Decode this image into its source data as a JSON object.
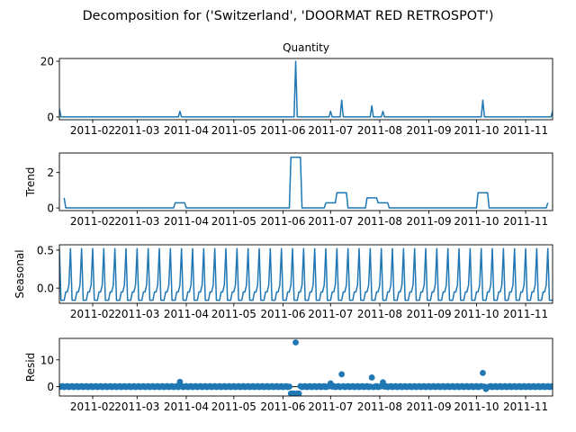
{
  "chart_data": {
    "type": "line",
    "figure_title": "Decomposition for ('Switzerland', 'DOORMAT RED RETROSPOT')",
    "x_domain": [
      "2011-01-11",
      "2011-11-18"
    ],
    "x_ticks": [
      "2011-02",
      "2011-03",
      "2011-04",
      "2011-05",
      "2011-06",
      "2011-07",
      "2011-08",
      "2011-09",
      "2011-10",
      "2011-11"
    ],
    "x_tick_dates": [
      "2011-02-01",
      "2011-03-01",
      "2011-04-01",
      "2011-05-01",
      "2011-06-01",
      "2011-07-01",
      "2011-08-01",
      "2011-09-01",
      "2011-10-01",
      "2011-11-01"
    ],
    "panels": [
      {
        "id": "quantity",
        "title": "Quantity",
        "ylabel": "",
        "ylim": [
          -1,
          21
        ],
        "yticks": [
          0,
          20
        ],
        "style": "line",
        "points": [
          [
            "2011-01-11",
            3
          ],
          [
            "2011-01-12",
            0
          ],
          [
            "2011-03-27",
            0
          ],
          [
            "2011-03-28",
            2
          ],
          [
            "2011-03-29",
            0
          ],
          [
            "2011-06-08",
            0
          ],
          [
            "2011-06-09",
            20
          ],
          [
            "2011-06-10",
            0
          ],
          [
            "2011-06-30",
            0
          ],
          [
            "2011-07-01",
            2
          ],
          [
            "2011-07-02",
            0
          ],
          [
            "2011-07-07",
            0
          ],
          [
            "2011-07-08",
            6
          ],
          [
            "2011-07-09",
            0
          ],
          [
            "2011-07-26",
            0
          ],
          [
            "2011-07-27",
            4
          ],
          [
            "2011-07-28",
            0
          ],
          [
            "2011-08-02",
            0
          ],
          [
            "2011-08-03",
            2
          ],
          [
            "2011-08-04",
            0
          ],
          [
            "2011-10-04",
            0
          ],
          [
            "2011-10-05",
            6
          ],
          [
            "2011-10-06",
            0
          ],
          [
            "2011-11-17",
            0
          ],
          [
            "2011-11-18",
            2
          ]
        ]
      },
      {
        "id": "trend",
        "title": "",
        "ylabel": "Trend",
        "ylim": [
          -0.15,
          3.1
        ],
        "yticks": [
          0,
          2
        ],
        "style": "line",
        "points": [
          [
            "2011-01-14",
            0.57
          ],
          [
            "2011-01-15",
            0
          ],
          [
            "2011-03-24",
            0
          ],
          [
            "2011-03-25",
            0.29
          ],
          [
            "2011-03-31",
            0.29
          ],
          [
            "2011-04-01",
            0
          ],
          [
            "2011-06-05",
            0
          ],
          [
            "2011-06-06",
            2.86
          ],
          [
            "2011-06-12",
            2.86
          ],
          [
            "2011-06-13",
            0
          ],
          [
            "2011-06-27",
            0
          ],
          [
            "2011-06-28",
            0.29
          ],
          [
            "2011-07-04",
            0.29
          ],
          [
            "2011-07-05",
            0.86
          ],
          [
            "2011-07-11",
            0.86
          ],
          [
            "2011-07-12",
            0
          ],
          [
            "2011-07-23",
            0
          ],
          [
            "2011-07-24",
            0.57
          ],
          [
            "2011-07-30",
            0.57
          ],
          [
            "2011-07-31",
            0.29
          ],
          [
            "2011-08-06",
            0.29
          ],
          [
            "2011-08-07",
            0
          ],
          [
            "2011-10-01",
            0
          ],
          [
            "2011-10-02",
            0.86
          ],
          [
            "2011-10-08",
            0.86
          ],
          [
            "2011-10-09",
            0
          ],
          [
            "2011-11-14",
            0
          ],
          [
            "2011-11-15",
            0.29
          ]
        ]
      },
      {
        "id": "seasonal",
        "title": "",
        "ylabel": "Seasonal",
        "ylim": [
          -0.2,
          0.57
        ],
        "yticks": [
          0.5,
          0.0
        ],
        "style": "seasonal",
        "period_days": 7,
        "pattern": [
          0.52,
          -0.16,
          -0.16,
          -0.16,
          -0.05,
          -0.05,
          0.04
        ]
      },
      {
        "id": "resid",
        "title": "",
        "ylabel": "Resid",
        "ylim": [
          -3.5,
          18
        ],
        "yticks": [
          0,
          10
        ],
        "style": "scatter",
        "baseline_day_start": "2011-01-11",
        "baseline_day_end": "2011-11-18",
        "outliers": [
          [
            "2011-03-28",
            1.8
          ],
          [
            "2011-06-06",
            -2.6
          ],
          [
            "2011-06-07",
            -2.6
          ],
          [
            "2011-06-08",
            -2.6
          ],
          [
            "2011-06-09",
            16.5
          ],
          [
            "2011-06-10",
            -2.6
          ],
          [
            "2011-06-11",
            -2.6
          ],
          [
            "2011-07-01",
            1.2
          ],
          [
            "2011-07-08",
            4.6
          ],
          [
            "2011-07-27",
            3.4
          ],
          [
            "2011-08-03",
            1.6
          ],
          [
            "2011-10-05",
            5.1
          ],
          [
            "2011-10-07",
            -0.9
          ]
        ]
      }
    ]
  }
}
